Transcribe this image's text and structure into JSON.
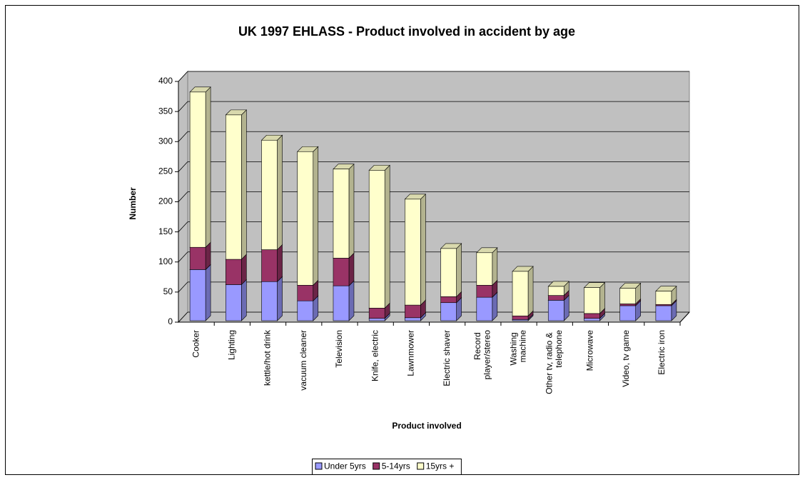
{
  "chart_data": {
    "type": "bar3d_stacked",
    "title": "UK 1997 EHLASS - Product involved in accident by age",
    "x_label": "Product involved",
    "y_label": "Number",
    "categories": [
      "Cooker",
      "Lighting",
      "kettle/hot drink",
      "vacuum cleaner",
      "Television",
      "Knife, electric",
      "Lawnmower",
      "Electric shaver",
      "Record player/stereo",
      "Washing machine",
      "Other tv, radio & telephone",
      "Microwave",
      "Video, tv game",
      "Electric iron"
    ],
    "series": [
      {
        "name": "Under 5yrs",
        "color": "#9999ff",
        "values": [
          85,
          60,
          65,
          33,
          58,
          4,
          5,
          30,
          39,
          2,
          34,
          4,
          25,
          25
        ]
      },
      {
        "name": "5-14yrs",
        "color": "#993366",
        "values": [
          37,
          42,
          53,
          26,
          46,
          17,
          21,
          10,
          20,
          6,
          8,
          8,
          3,
          2
        ]
      },
      {
        "name": "15yrs +",
        "color": "#ffffcc",
        "values": [
          258,
          240,
          182,
          222,
          148,
          229,
          176,
          80,
          54,
          74,
          15,
          43,
          26,
          22
        ]
      }
    ],
    "ylim": [
      0,
      400
    ],
    "yticks": [
      0,
      50,
      100,
      150,
      200,
      250,
      300,
      350,
      400
    ],
    "grid": true,
    "legend": "bottom"
  }
}
